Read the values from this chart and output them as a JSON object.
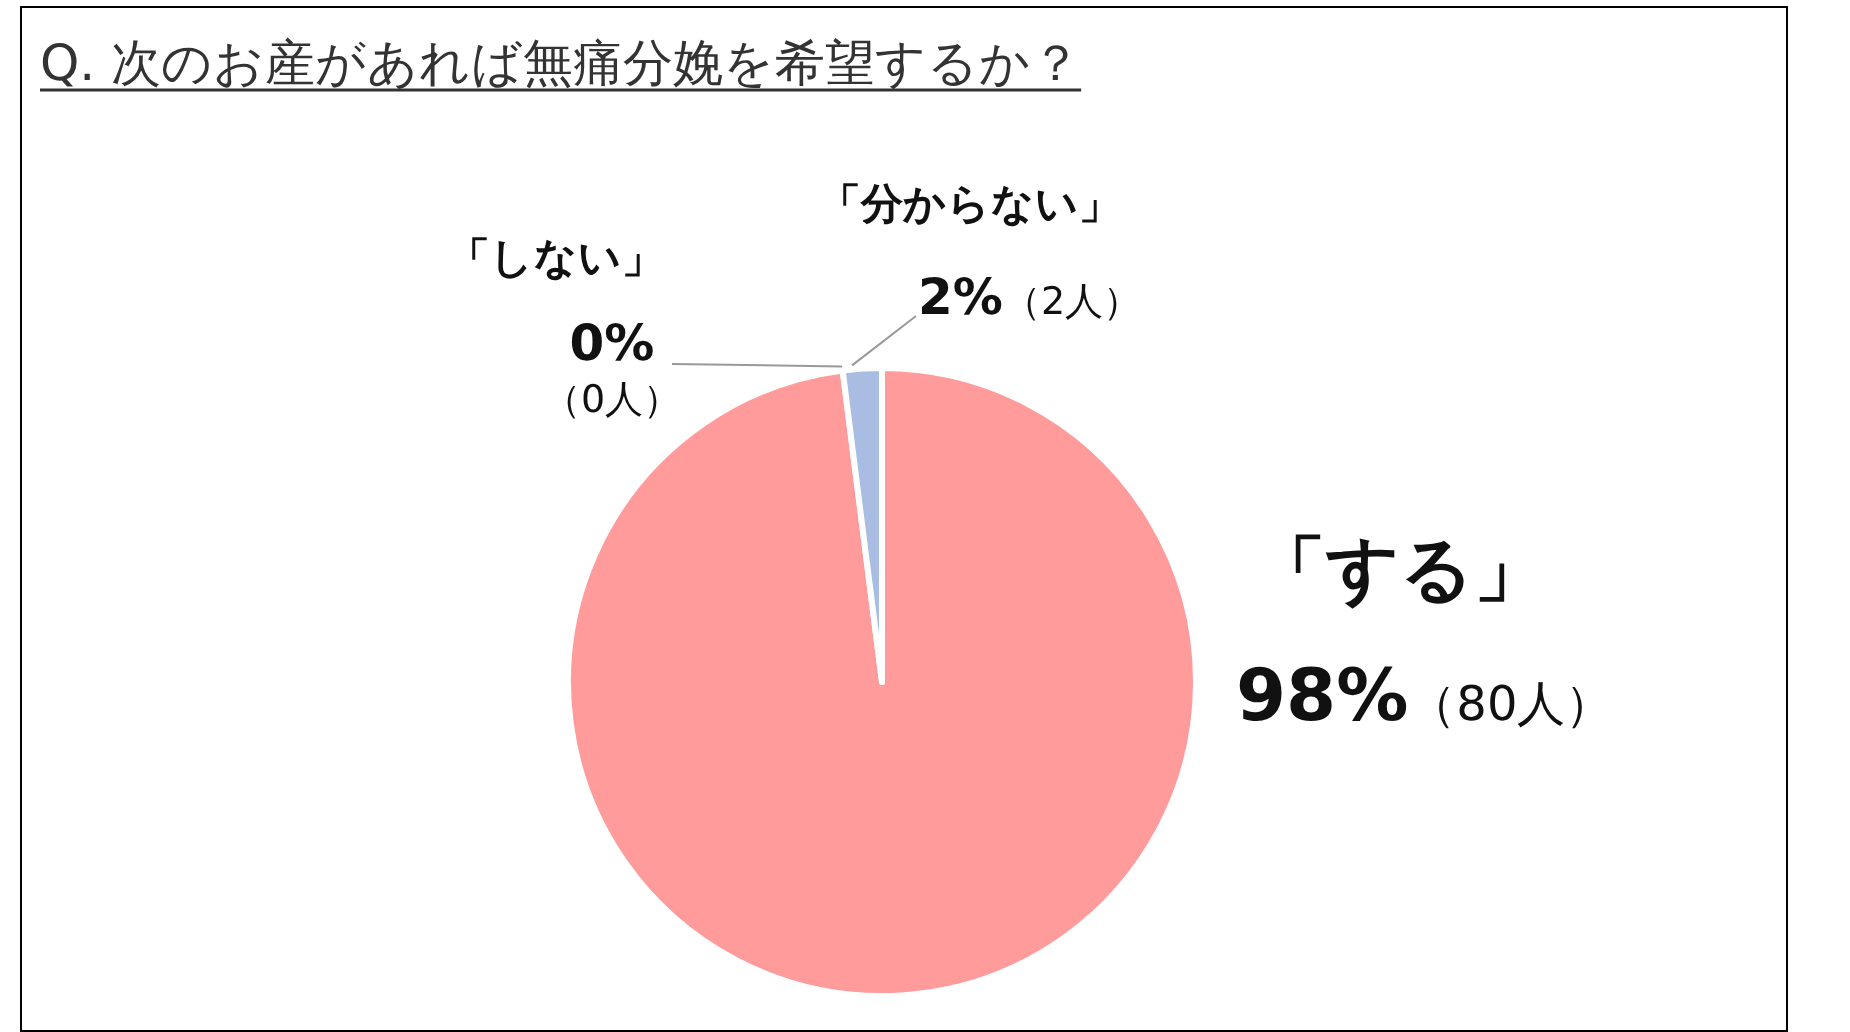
{
  "chart_data": {
    "type": "pie",
    "title": "Q. 次のお産があれば無痛分娩を希望するか？",
    "categories": [
      "「する」",
      "「しない」",
      "「分からない」"
    ],
    "values": [
      98,
      0,
      2
    ],
    "colors": [
      "#ff9b9b",
      null,
      "#a9bde3"
    ],
    "value_labels": [
      "98%（80人）",
      "0%（0人）",
      "2%（2人）"
    ]
  }
}
